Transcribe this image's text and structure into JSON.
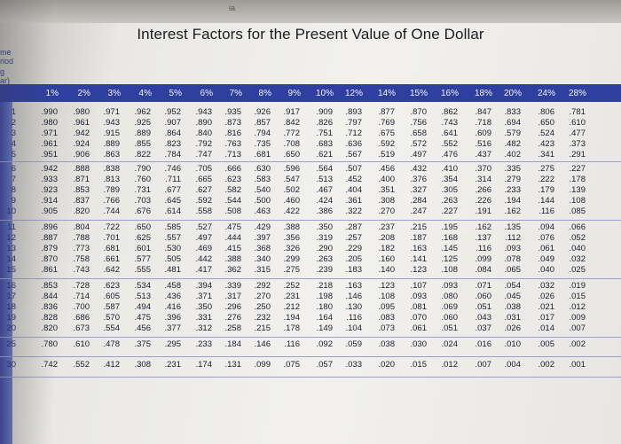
{
  "title": "Interest Factors for the Present Value of One Dollar",
  "top_mark": "ia",
  "side_labels": [
    "me",
    "riod",
    "g",
    "ar)"
  ],
  "headers": [
    "1%",
    "2%",
    "3%",
    "4%",
    "5%",
    "6%",
    "7%",
    "8%",
    "9%",
    "10%",
    "12%",
    "14%",
    "15%",
    "16%",
    "18%",
    "20%",
    "24%",
    "28%"
  ],
  "rows": [
    {
      "period": "1",
      "values": [
        ".990",
        ".980",
        ".971",
        ".962",
        ".952",
        ".943",
        ".935",
        ".926",
        ".917",
        ".909",
        ".893",
        ".877",
        ".870",
        ".862",
        ".847",
        ".833",
        ".806",
        ".781"
      ]
    },
    {
      "period": "2",
      "values": [
        ".980",
        ".961",
        ".943",
        ".925",
        ".907",
        ".890",
        ".873",
        ".857",
        ".842",
        ".826",
        ".797",
        ".769",
        ".756",
        ".743",
        ".718",
        ".694",
        ".650",
        ".610"
      ]
    },
    {
      "period": "3",
      "values": [
        ".971",
        ".942",
        ".915",
        ".889",
        ".864",
        ".840",
        ".816",
        ".794",
        ".772",
        ".751",
        ".712",
        ".675",
        ".658",
        ".641",
        ".609",
        ".579",
        ".524",
        ".477"
      ]
    },
    {
      "period": "4",
      "values": [
        ".961",
        ".924",
        ".889",
        ".855",
        ".823",
        ".792",
        ".763",
        ".735",
        ".708",
        ".683",
        ".636",
        ".592",
        ".572",
        ".552",
        ".516",
        ".482",
        ".423",
        ".373"
      ]
    },
    {
      "period": "5",
      "values": [
        ".951",
        ".906",
        ".863",
        ".822",
        ".784",
        ".747",
        ".713",
        ".681",
        ".650",
        ".621",
        ".567",
        ".519",
        ".497",
        ".476",
        ".437",
        ".402",
        ".341",
        ".291"
      ]
    },
    {
      "period": "6",
      "values": [
        ".942",
        ".888",
        ".838",
        ".790",
        ".746",
        ".705",
        ".666",
        ".630",
        ".596",
        ".564",
        ".507",
        ".456",
        ".432",
        ".410",
        ".370",
        ".335",
        ".275",
        ".227"
      ]
    },
    {
      "period": "7",
      "values": [
        ".933",
        ".871",
        ".813",
        ".760",
        ".711",
        ".665",
        ".623",
        ".583",
        ".547",
        ".513",
        ".452",
        ".400",
        ".376",
        ".354",
        ".314",
        ".279",
        ".222",
        ".178"
      ]
    },
    {
      "period": "8",
      "values": [
        ".923",
        ".853",
        ".789",
        ".731",
        ".677",
        ".627",
        ".582",
        ".540",
        ".502",
        ".467",
        ".404",
        ".351",
        ".327",
        ".305",
        ".266",
        ".233",
        ".179",
        ".139"
      ]
    },
    {
      "period": "9",
      "values": [
        ".914",
        ".837",
        ".766",
        ".703",
        ".645",
        ".592",
        ".544",
        ".500",
        ".460",
        ".424",
        ".361",
        ".308",
        ".284",
        ".263",
        ".226",
        ".194",
        ".144",
        ".108"
      ]
    },
    {
      "period": "10",
      "values": [
        ".905",
        ".820",
        ".744",
        ".676",
        ".614",
        ".558",
        ".508",
        ".463",
        ".422",
        ".386",
        ".322",
        ".270",
        ".247",
        ".227",
        ".191",
        ".162",
        ".116",
        ".085"
      ]
    },
    {
      "period": "11",
      "values": [
        ".896",
        ".804",
        ".722",
        ".650",
        ".585",
        ".527",
        ".475",
        ".429",
        ".388",
        ".350",
        ".287",
        ".237",
        ".215",
        ".195",
        ".162",
        ".135",
        ".094",
        ".066"
      ]
    },
    {
      "period": "12",
      "values": [
        ".887",
        ".788",
        ".701",
        ".625",
        ".557",
        ".497",
        ".444",
        ".397",
        ".356",
        ".319",
        ".257",
        ".208",
        ".187",
        ".168",
        ".137",
        ".112",
        ".076",
        ".052"
      ]
    },
    {
      "period": "13",
      "values": [
        ".879",
        ".773",
        ".681",
        ".601",
        ".530",
        ".469",
        ".415",
        ".368",
        ".326",
        ".290",
        ".229",
        ".182",
        ".163",
        ".145",
        ".116",
        ".093",
        ".061",
        ".040"
      ]
    },
    {
      "period": "14",
      "values": [
        ".870",
        ".758",
        ".661",
        ".577",
        ".505",
        ".442",
        ".388",
        ".340",
        ".299",
        ".263",
        ".205",
        ".160",
        ".141",
        ".125",
        ".099",
        ".078",
        ".049",
        ".032"
      ]
    },
    {
      "period": "15",
      "values": [
        ".861",
        ".743",
        ".642",
        ".555",
        ".481",
        ".417",
        ".362",
        ".315",
        ".275",
        ".239",
        ".183",
        ".140",
        ".123",
        ".108",
        ".084",
        ".065",
        ".040",
        ".025"
      ]
    },
    {
      "period": "16",
      "values": [
        ".853",
        ".728",
        ".623",
        ".534",
        ".458",
        ".394",
        ".339",
        ".292",
        ".252",
        ".218",
        ".163",
        ".123",
        ".107",
        ".093",
        ".071",
        ".054",
        ".032",
        ".019"
      ]
    },
    {
      "period": "17",
      "values": [
        ".844",
        ".714",
        ".605",
        ".513",
        ".436",
        ".371",
        ".317",
        ".270",
        ".231",
        ".198",
        ".146",
        ".108",
        ".093",
        ".080",
        ".060",
        ".045",
        ".026",
        ".015"
      ]
    },
    {
      "period": "18",
      "values": [
        ".836",
        ".700",
        ".587",
        ".494",
        ".416",
        ".350",
        ".296",
        ".250",
        ".212",
        ".180",
        ".130",
        ".095",
        ".081",
        ".069",
        ".051",
        ".038",
        ".021",
        ".012"
      ]
    },
    {
      "period": "19",
      "values": [
        ".828",
        ".686",
        ".570",
        ".475",
        ".396",
        ".331",
        ".276",
        ".232",
        ".194",
        ".164",
        ".116",
        ".083",
        ".070",
        ".060",
        ".043",
        ".031",
        ".017",
        ".009"
      ]
    },
    {
      "period": "20",
      "values": [
        ".820",
        ".673",
        ".554",
        ".456",
        ".377",
        ".312",
        ".258",
        ".215",
        ".178",
        ".149",
        ".104",
        ".073",
        ".061",
        ".051",
        ".037",
        ".026",
        ".014",
        ".007"
      ]
    },
    {
      "period": "25",
      "values": [
        ".780",
        ".610",
        ".478",
        ".375",
        ".295",
        ".233",
        ".184",
        ".146",
        ".116",
        ".092",
        ".059",
        ".038",
        ".030",
        ".024",
        ".016",
        ".010",
        ".005",
        ".002"
      ]
    },
    {
      "period": "30",
      "values": [
        ".742",
        ".552",
        ".412",
        ".308",
        ".231",
        ".174",
        ".131",
        ".099",
        ".075",
        ".057",
        ".033",
        ".020",
        ".015",
        ".012",
        ".007",
        ".004",
        ".002",
        ".001"
      ]
    }
  ],
  "colors": {
    "header_band": "#2f3fa0",
    "header_text": "#f4f4f8",
    "cell_text": "#1a1c30",
    "period_text": "#1e2a77"
  }
}
